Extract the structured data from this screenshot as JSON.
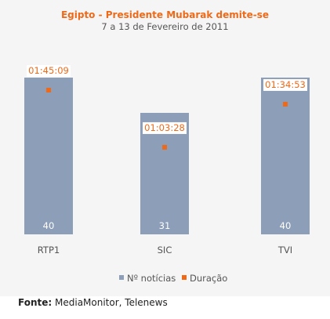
{
  "colors": {
    "background": "#f5f5f5",
    "title": "#ee6a19",
    "subtitle": "#555555",
    "bar": "#8c9eb8",
    "duration_marker": "#ee6a19",
    "duration_label": "#ee6a19"
  },
  "chart_data": {
    "type": "bar",
    "title": "Egipto - Presidente Mubarak demite-se",
    "subtitle": "7 a 13 de Fevereiro de 2011",
    "categories": [
      "RTP1",
      "SIC",
      "TVI"
    ],
    "series": [
      {
        "name": "Nº notícias",
        "type": "bar",
        "values": [
          40,
          31,
          40
        ]
      },
      {
        "name": "Duração",
        "type": "marker",
        "values": [
          "01:45:09",
          "01:03:28",
          "01:34:53"
        ],
        "values_seconds": [
          6309,
          3808,
          5693
        ]
      }
    ],
    "bar_labels": [
      "40",
      "31",
      "40"
    ],
    "duration_labels": [
      "01:45:09",
      "01:03:28",
      "01:34:53"
    ],
    "ylim_news": [
      0,
      42
    ],
    "ylim_duration_seconds": [
      0,
      7200
    ],
    "grid": false,
    "legend_position": "bottom"
  },
  "source": {
    "label": "Fonte:",
    "text": "MediaMonitor, Telenews"
  }
}
